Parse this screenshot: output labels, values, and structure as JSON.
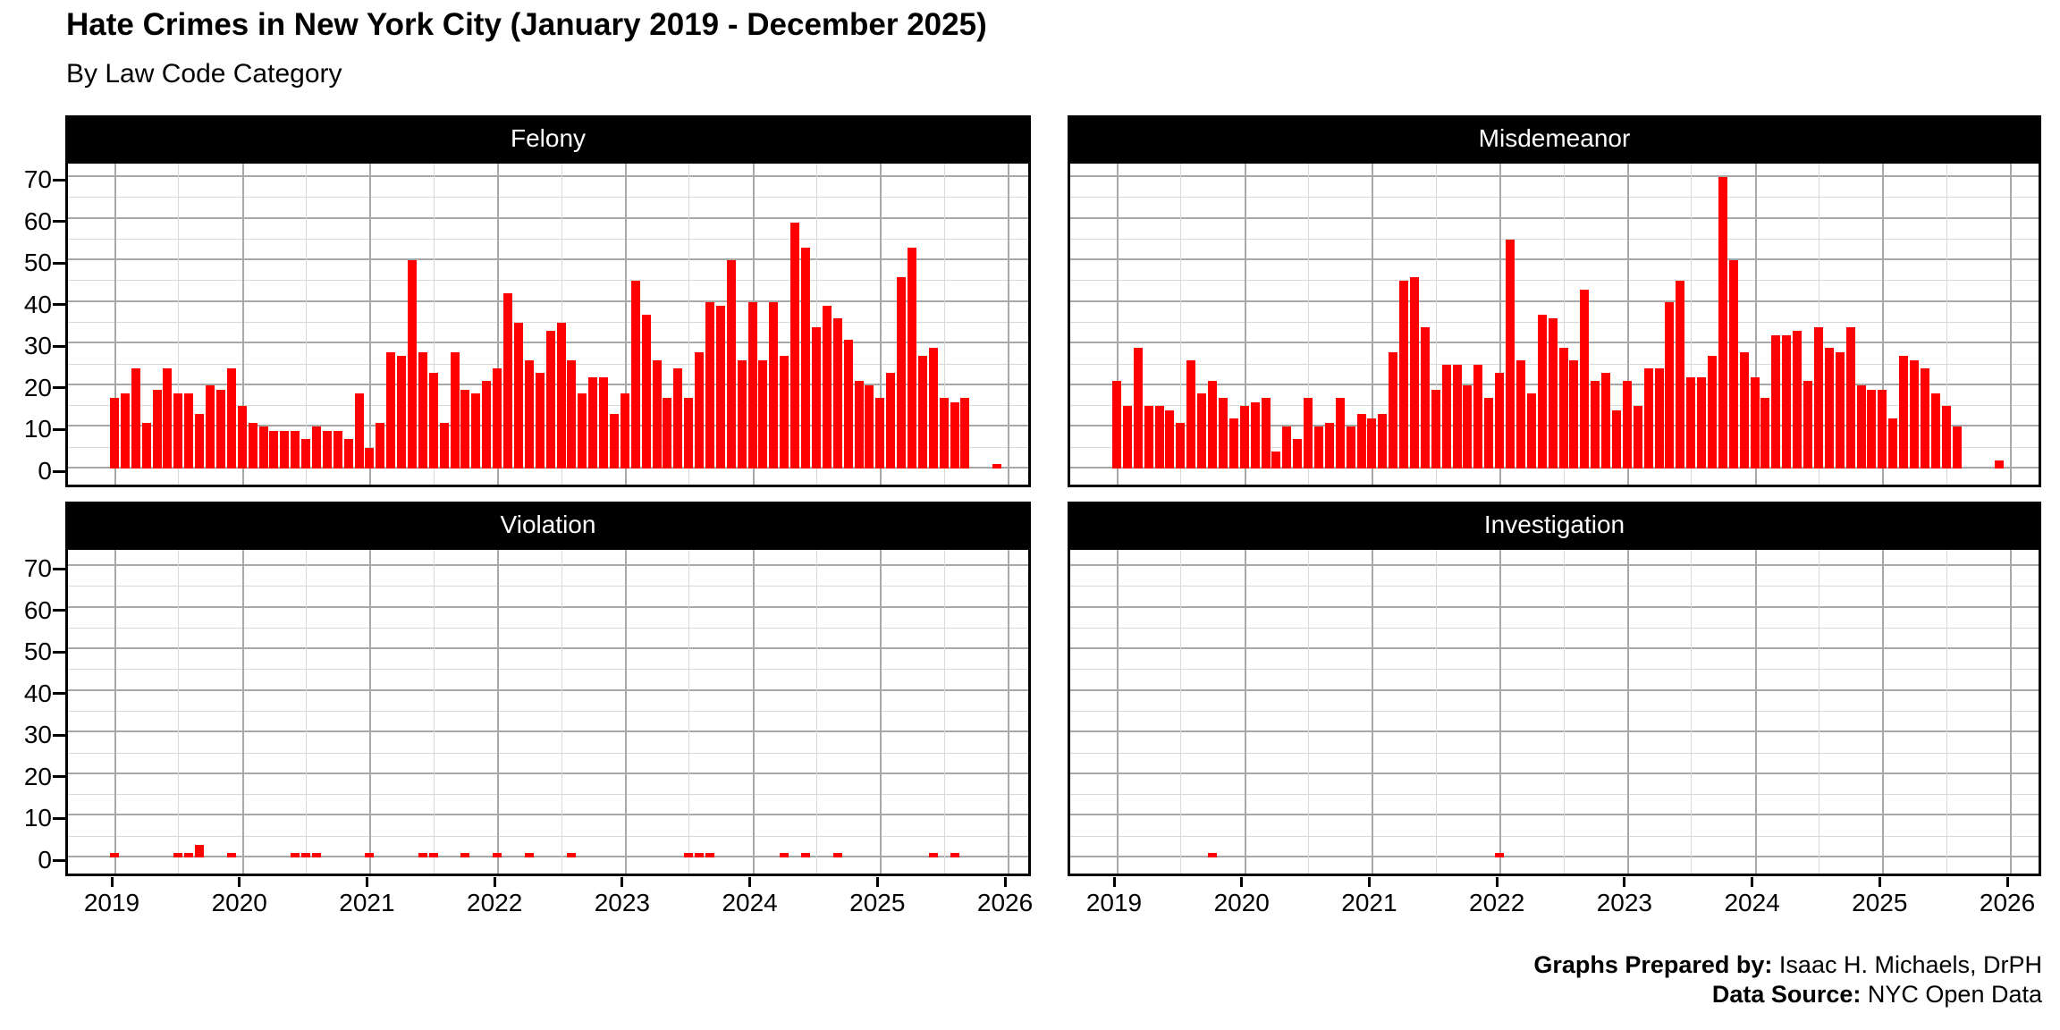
{
  "title": "Hate Crimes in New York City (January 2019 - December 2025)",
  "subtitle": "By Law Code Category",
  "caption": {
    "prepared_label": "Graphs Prepared by:",
    "prepared_value": " Isaac H. Michaels, DrPH",
    "source_label": "Data Source:",
    "source_value": " NYC Open Data"
  },
  "colors": {
    "bar": "#ff0000",
    "strip_bg": "#000000",
    "strip_text": "#ffffff",
    "grid_major": "#a8a8a8",
    "grid_minor": "#d9d9d9",
    "panel_border": "#000000",
    "background": "#ffffff"
  },
  "axes": {
    "y_ticks": [
      0,
      10,
      20,
      30,
      40,
      50,
      60,
      70
    ],
    "y_minor_ticks": [
      5,
      15,
      25,
      35,
      45,
      55,
      65
    ],
    "x_ticks": [
      "2019",
      "2020",
      "2021",
      "2022",
      "2023",
      "2024",
      "2025",
      "2026"
    ],
    "grid": "both-major-and-minor",
    "x_labels_shown_on": "bottom-row-only",
    "y_labels_shown_on": "left-column-only"
  },
  "chart_data": {
    "type": "bar",
    "title": "Hate Crimes in New York City (January 2019 - December 2025)",
    "subtitle": "By Law Code Category",
    "x_unit": "month",
    "x_range": [
      "Jan 2019",
      "Dec 2025"
    ],
    "ylim": [
      0,
      75
    ],
    "legend": "none",
    "layout": "2x2 facet grid by law code category",
    "facets": [
      {
        "label": "Felony",
        "values_by_year": {
          "2019": [
            17,
            18,
            24,
            11,
            19,
            24,
            18,
            18,
            13,
            20,
            19,
            24
          ],
          "2020": [
            15,
            11,
            10,
            9,
            9,
            9,
            7,
            10,
            9,
            9,
            7,
            18
          ],
          "2021": [
            5,
            11,
            28,
            27,
            50,
            28,
            23,
            11,
            28,
            19,
            18,
            21
          ],
          "2022": [
            24,
            42,
            35,
            26,
            23,
            33,
            35,
            26,
            18,
            22,
            22,
            13
          ],
          "2023": [
            18,
            45,
            37,
            26,
            17,
            24,
            17,
            28,
            40,
            39,
            50,
            26
          ],
          "2024": [
            40,
            26,
            40,
            27,
            59,
            53,
            34,
            39,
            36,
            31,
            21,
            20
          ],
          "2025": [
            17,
            23,
            46,
            53,
            27,
            29,
            17,
            16,
            17,
            0,
            0,
            1
          ]
        }
      },
      {
        "label": "Misdemeanor",
        "values_by_year": {
          "2019": [
            21,
            15,
            29,
            15,
            15,
            14,
            11,
            26,
            18,
            21,
            17,
            12
          ],
          "2020": [
            15,
            16,
            17,
            4,
            10,
            7,
            17,
            10,
            11,
            17,
            10,
            13
          ],
          "2021": [
            12,
            13,
            28,
            45,
            46,
            34,
            19,
            25,
            25,
            20,
            25,
            17
          ],
          "2022": [
            23,
            55,
            26,
            18,
            37,
            36,
            29,
            26,
            43,
            21,
            23,
            14
          ],
          "2023": [
            21,
            15,
            24,
            24,
            40,
            45,
            22,
            22,
            27,
            70,
            50,
            28
          ],
          "2024": [
            22,
            17,
            32,
            32,
            33,
            21,
            34,
            29,
            28,
            34,
            20,
            19
          ],
          "2025": [
            19,
            12,
            27,
            26,
            24,
            18,
            15,
            10,
            0,
            0,
            0,
            2
          ]
        }
      },
      {
        "label": "Violation",
        "values_by_year": {
          "2019": [
            1,
            0,
            0,
            0,
            0,
            0,
            1,
            1,
            3,
            0,
            0,
            1
          ],
          "2020": [
            0,
            0,
            0,
            0,
            0,
            1,
            1,
            1,
            0,
            0,
            0,
            0
          ],
          "2021": [
            1,
            0,
            0,
            0,
            0,
            1,
            1,
            0,
            0,
            1,
            0,
            0
          ],
          "2022": [
            1,
            0,
            0,
            1,
            0,
            0,
            0,
            1,
            0,
            0,
            0,
            0
          ],
          "2023": [
            0,
            0,
            0,
            0,
            0,
            0,
            1,
            1,
            1,
            0,
            0,
            0
          ],
          "2024": [
            0,
            0,
            0,
            1,
            0,
            1,
            0,
            0,
            1,
            0,
            0,
            0
          ],
          "2025": [
            0,
            0,
            0,
            0,
            0,
            1,
            0,
            1,
            0,
            0,
            0,
            0
          ]
        }
      },
      {
        "label": "Investigation",
        "values_by_year": {
          "2019": [
            0,
            0,
            0,
            0,
            0,
            0,
            0,
            0,
            0,
            1,
            0,
            0
          ],
          "2020": [
            0,
            0,
            0,
            0,
            0,
            0,
            0,
            0,
            0,
            0,
            0,
            0
          ],
          "2021": [
            0,
            0,
            0,
            0,
            0,
            0,
            0,
            0,
            0,
            0,
            0,
            0
          ],
          "2022": [
            1,
            0,
            0,
            0,
            0,
            0,
            0,
            0,
            0,
            0,
            0,
            0
          ],
          "2023": [
            0,
            0,
            0,
            0,
            0,
            0,
            0,
            0,
            0,
            0,
            0,
            0
          ],
          "2024": [
            0,
            0,
            0,
            0,
            0,
            0,
            0,
            0,
            0,
            0,
            0,
            0
          ],
          "2025": [
            0,
            0,
            0,
            0,
            0,
            0,
            0,
            0,
            0,
            0,
            0,
            0
          ]
        }
      }
    ]
  }
}
